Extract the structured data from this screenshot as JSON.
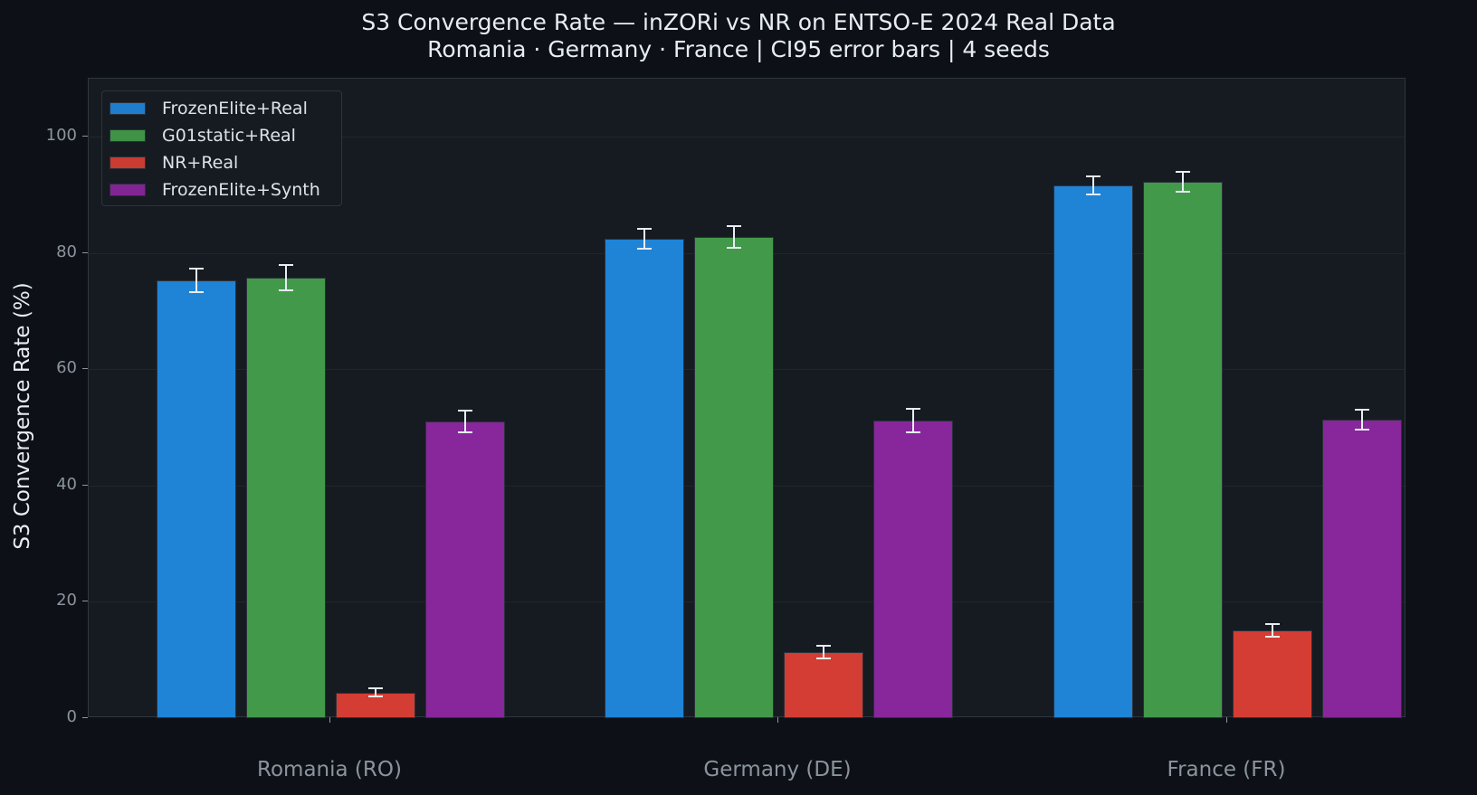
{
  "chart_data": {
    "type": "bar",
    "title": "S3 Convergence Rate — inZORi vs NR on ENTSO-E 2024 Real Data",
    "subtitle": "Romania · Germany · France | CI95 error bars | 4 seeds",
    "xlabel": "",
    "ylabel": "S3 Convergence Rate (%)",
    "ylim": [
      0,
      110
    ],
    "yticks": [
      0,
      20,
      40,
      60,
      80,
      100
    ],
    "grid": true,
    "legend_position": "upper left",
    "categories": [
      "Romania (RO)",
      "Germany (DE)",
      "France (FR)"
    ],
    "series": [
      {
        "name": "FrozenElite+Real",
        "color": "#1f83d6",
        "values": [
          75.3,
          82.4,
          91.6
        ],
        "ci95": [
          2.0,
          1.7,
          1.5
        ]
      },
      {
        "name": "G01static+Real",
        "color": "#43994a",
        "values": [
          75.7,
          82.7,
          92.2
        ],
        "ci95": [
          2.2,
          1.9,
          1.7
        ]
      },
      {
        "name": "NR+Real",
        "color": "#d43d33",
        "values": [
          4.4,
          11.4,
          15.1
        ],
        "ci95": [
          0.7,
          1.1,
          1.1
        ]
      },
      {
        "name": "FrozenElite+Synth",
        "color": "#88269b",
        "values": [
          51.0,
          51.2,
          51.3
        ],
        "ci95": [
          1.9,
          2.0,
          1.7
        ]
      }
    ]
  },
  "header": {
    "title": "S3 Convergence Rate — inZORi vs NR on ENTSO-E 2024 Real Data",
    "subtitle": "Romania · Germany · France | CI95 error bars | 4 seeds"
  },
  "axes": {
    "ylabel": "S3 Convergence Rate (%)",
    "yticks": [
      "0",
      "20",
      "40",
      "60",
      "80",
      "100"
    ],
    "xticks": [
      "Romania (RO)",
      "Germany (DE)",
      "France (FR)"
    ]
  },
  "legend": {
    "items": [
      {
        "label": "FrozenElite+Real",
        "color": "#1f83d6"
      },
      {
        "label": "G01static+Real",
        "color": "#43994a"
      },
      {
        "label": "NR+Real",
        "color": "#d43d33"
      },
      {
        "label": "FrozenElite+Synth",
        "color": "#88269b"
      }
    ]
  },
  "colors": {
    "background": "#0d1117",
    "plot_background": "#161b22",
    "grid": "#21262d",
    "text": "#e6edf3",
    "muted_text": "#8b949e"
  }
}
